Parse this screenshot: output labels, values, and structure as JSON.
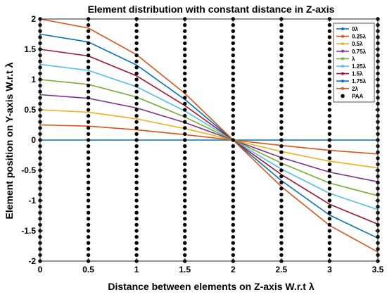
{
  "chart_data": {
    "type": "line",
    "title": "Element distribution with constant distance in Z-axis",
    "xlabel": "Distance between elements on Z-axis W.r.t λ",
    "ylabel": "Element position on Y-axis W.r.t λ",
    "xlim": [
      0,
      3.5
    ],
    "ylim": [
      -2,
      2
    ],
    "xticks": [
      0,
      0.5,
      1,
      1.5,
      2,
      2.5,
      3,
      3.5
    ],
    "yticks": [
      -2,
      -1.5,
      -1,
      -0.5,
      0,
      0.5,
      1,
      1.5,
      2
    ],
    "xtick_labels": [
      "0",
      "0.5",
      "1",
      "1.5",
      "2",
      "2.5",
      "3",
      "3.5"
    ],
    "ytick_labels": [
      "-2",
      "-1.5",
      "-1",
      "-0.5",
      "0",
      "0.5",
      "1",
      "1.5",
      "2"
    ],
    "grid": false,
    "legend_position": "top-right",
    "x": [
      0,
      0.5,
      1,
      1.5,
      2,
      2.5,
      3,
      3.5
    ],
    "series": [
      {
        "name": "0λ",
        "color": "#0072BD",
        "values": [
          0,
          0,
          0,
          0,
          0,
          0,
          0,
          0
        ]
      },
      {
        "name": "0.25λ",
        "color": "#D95319",
        "values": [
          0.25,
          0.23,
          0.17,
          0.09,
          0,
          -0.09,
          -0.17,
          -0.23
        ]
      },
      {
        "name": "0.5λ",
        "color": "#EDB120",
        "values": [
          0.5,
          0.46,
          0.35,
          0.19,
          0,
          -0.19,
          -0.35,
          -0.46
        ]
      },
      {
        "name": "0.75λ",
        "color": "#7E2F8E",
        "values": [
          0.75,
          0.69,
          0.53,
          0.29,
          0,
          -0.29,
          -0.53,
          -0.69
        ]
      },
      {
        "name": "λ",
        "color": "#77AC30",
        "values": [
          1.0,
          0.92,
          0.71,
          0.38,
          0,
          -0.38,
          -0.71,
          -0.92
        ]
      },
      {
        "name": "1.25λ",
        "color": "#4DBEEE",
        "values": [
          1.25,
          1.15,
          0.88,
          0.48,
          0,
          -0.48,
          -0.88,
          -1.15
        ]
      },
      {
        "name": "1.5λ",
        "color": "#A2142F",
        "values": [
          1.5,
          1.39,
          1.06,
          0.57,
          0,
          -0.57,
          -1.06,
          -1.39
        ]
      },
      {
        "name": "1.75λ",
        "color": "#0072BD",
        "values": [
          1.75,
          1.62,
          1.24,
          0.67,
          0,
          -0.67,
          -1.24,
          -1.62
        ]
      },
      {
        "name": "2λ",
        "color": "#D95319",
        "values": [
          2.0,
          1.85,
          1.41,
          0.77,
          0,
          -0.77,
          -1.41,
          -1.85
        ]
      }
    ],
    "paa": {
      "name": "PAA",
      "color": "#000000",
      "columns_x": [
        0,
        0.5,
        1,
        1.5,
        2,
        2.5,
        3,
        3.5
      ],
      "y_values": [
        -2,
        -1.9,
        -1.8,
        -1.7,
        -1.6,
        -1.5,
        -1.4,
        -1.3,
        -1.2,
        -1.1,
        -1,
        -0.9,
        -0.8,
        -0.7,
        -0.6,
        -0.5,
        -0.4,
        -0.3,
        -0.2,
        -0.1,
        0,
        0.1,
        0.2,
        0.3,
        0.4,
        0.5,
        0.6,
        0.7,
        0.8,
        0.9,
        1,
        1.1,
        1.2,
        1.3,
        1.4,
        1.5,
        1.6,
        1.7,
        1.8,
        1.9,
        2
      ]
    }
  }
}
